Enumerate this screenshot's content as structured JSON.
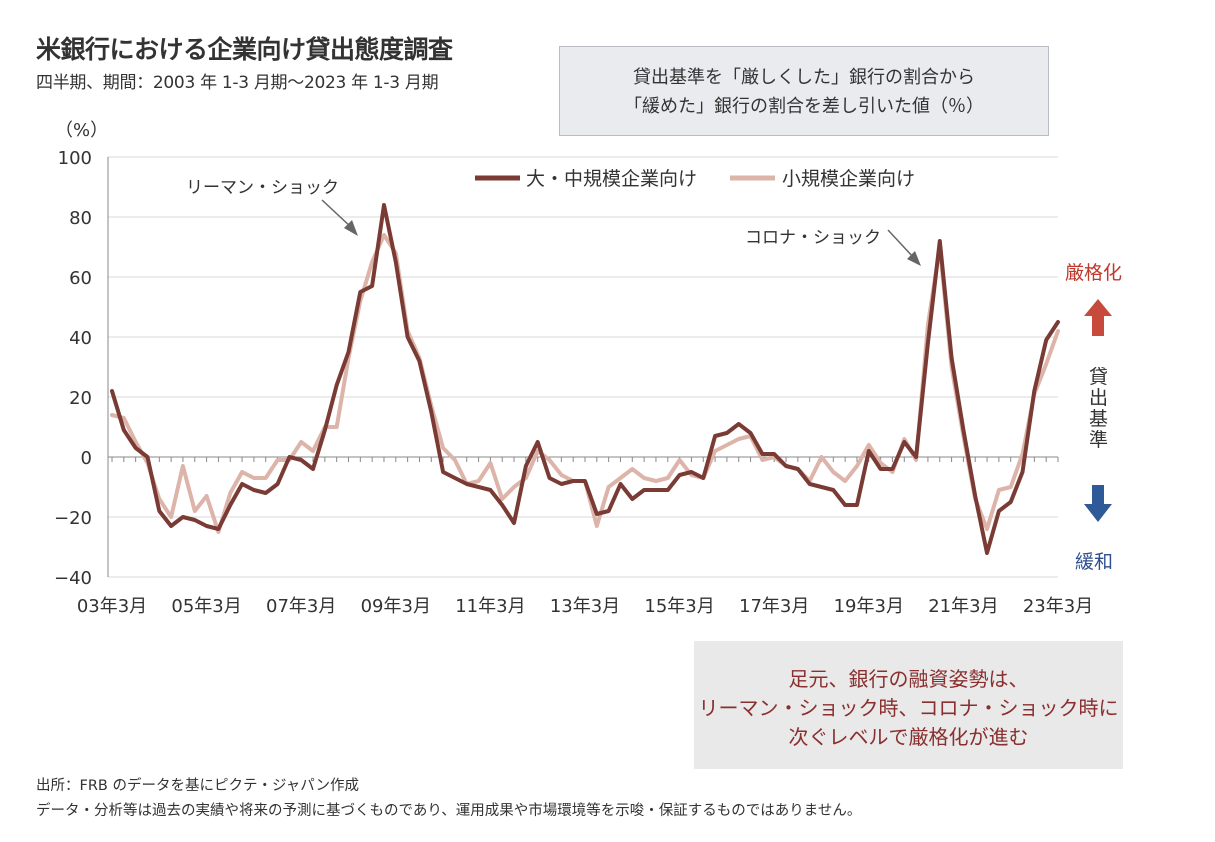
{
  "header": {
    "title": "米銀行における企業向け貸出態度調査",
    "subtitle": "四半期、期間：2003 年 1-3 月期～2023 年 1-3 月期"
  },
  "note_box": {
    "line1": "貸出基準を「厳しくした」銀行の割合から",
    "line2": "「緩めた」銀行の割合を差し引いた値（％）"
  },
  "comment_box": {
    "line1": "足元、銀行の融資姿勢は、",
    "line2": "リーマン・ショック時、コロナ・ショック時に",
    "line3": "次ぐレベルで厳格化が進む"
  },
  "footer": {
    "source": "出所：FRB のデータを基にピクテ・ジャパン作成",
    "disclaimer": "データ・分析等は過去の実績や将来の予測に基づくものであり、運用成果や市場環境等を示唆・保証するものではありません。"
  },
  "side_labels": {
    "up": "厳格化",
    "middle": [
      "貸",
      "出",
      "基",
      "準"
    ],
    "down": "緩和"
  },
  "colors": {
    "series_large": "#7a3b34",
    "series_small": "#dcb4aa",
    "arrow_up": "#c84a3c",
    "arrow_down": "#2f5a98",
    "grid": "#d9d9d9"
  },
  "chart_data": {
    "type": "line",
    "ylabel": "（%）",
    "ylim": [
      -40,
      100
    ],
    "yticks": [
      -40,
      -20,
      0,
      20,
      40,
      60,
      80,
      100
    ],
    "x_tick_labels": [
      "03年3月",
      "05年3月",
      "07年3月",
      "09年3月",
      "11年3月",
      "13年3月",
      "15年3月",
      "17年3月",
      "19年3月",
      "21年3月",
      "23年3月"
    ],
    "grid": true,
    "legend_position": "top-right",
    "annotations": [
      {
        "text": "リーマン・ショック",
        "x_index": 23
      },
      {
        "text": "コロナ・ショック",
        "x_index": 69
      }
    ],
    "series": [
      {
        "name": "大・中規模企業向け",
        "values": [
          22,
          9,
          3,
          0,
          -18,
          -23,
          -20,
          -21,
          -23,
          -24,
          -16,
          -9,
          -11,
          -12,
          -9,
          0,
          -1,
          -4,
          9,
          24,
          35,
          55,
          57,
          84,
          65,
          40,
          32,
          15,
          -5,
          -7,
          -9,
          -10,
          -11,
          -16,
          -22,
          -3,
          5,
          -7,
          -9,
          -8,
          -8,
          -19,
          -18,
          -9,
          -14,
          -11,
          -11,
          -11,
          -6,
          -5,
          -7,
          7,
          8,
          11,
          8,
          1,
          1,
          -3,
          -4,
          -9,
          -10,
          -11,
          -16,
          -16,
          2,
          -4,
          -4,
          5,
          0,
          38,
          72,
          33,
          9,
          -13,
          -32,
          -18,
          -15,
          -5,
          22,
          39,
          45
        ]
      },
      {
        "name": "小規模企業向け",
        "values": [
          14,
          13,
          5,
          -2,
          -14,
          -20,
          -3,
          -18,
          -13,
          -25,
          -12,
          -5,
          -7,
          -7,
          -1,
          -1,
          5,
          2,
          10,
          10,
          33,
          52,
          65,
          74,
          68,
          42,
          33,
          17,
          3,
          -1,
          -9,
          -8,
          -2,
          -14,
          -10,
          -7,
          2,
          -1,
          -6,
          -8,
          -8,
          -23,
          -10,
          -7,
          -4,
          -7,
          -8,
          -7,
          -1,
          -6,
          -7,
          2,
          4,
          6,
          7,
          -1,
          0,
          -3,
          -4,
          -8,
          0,
          -5,
          -8,
          -3,
          4,
          -2,
          -5,
          6,
          -1,
          44,
          70,
          30,
          7,
          -14,
          -24,
          -11,
          -10,
          1,
          21,
          31,
          42
        ]
      }
    ]
  }
}
